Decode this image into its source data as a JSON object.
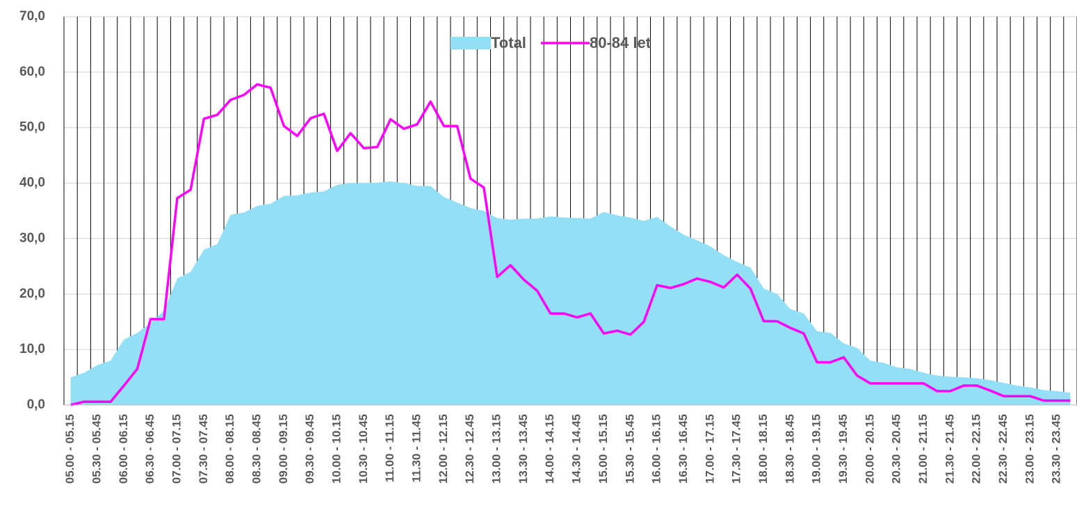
{
  "chart_data": {
    "type": "area_line",
    "categories": [
      "05.00 - 05.15",
      null,
      "05.30 - 05.45",
      null,
      "06.00 - 06.15",
      null,
      "06.30 - 06.45",
      null,
      "07.00 - 07.15",
      null,
      "07.30 - 07.45",
      null,
      "08.00 - 08.15",
      null,
      "08.30 - 08.45",
      null,
      "09.00 - 09.15",
      null,
      "09.30 - 09.45",
      null,
      "10.00 - 10.15",
      null,
      "10.30 - 10.45",
      null,
      "11.00 - 11.15",
      null,
      "11.30 - 11.45",
      null,
      "12.00 - 12.15",
      null,
      "12.30 - 12.45",
      null,
      "13.00 - 13.15",
      null,
      "13.30 - 13.45",
      null,
      "14.00 - 14.15",
      null,
      "14.30 - 14.45",
      null,
      "15.00 - 15.15",
      null,
      "15.30 - 15.45",
      null,
      "16.00 - 16.15",
      null,
      "16.30 - 16.45",
      null,
      "17.00 - 17.15",
      null,
      "17.30 - 17.45",
      null,
      "18.00 - 18.15",
      null,
      "18.30 - 18.45",
      null,
      "19.00 - 19.15",
      null,
      "19.30 - 19.45",
      null,
      "20.00 - 20.15",
      null,
      "20.30 - 20.45",
      null,
      "21.00 - 21.15",
      null,
      "21.30 - 21.45",
      null,
      "22.00 - 22.15",
      null,
      "22.30 - 22.45",
      null,
      "23.00 - 23.15",
      null,
      "23.30 - 23.45",
      null
    ],
    "series": [
      {
        "name": "Total",
        "kind": "area",
        "color": "#92dff6",
        "values": [
          5.0,
          5.8,
          7.2,
          8.0,
          11.8,
          13.0,
          14.8,
          17.0,
          22.8,
          24.0,
          28.0,
          29.0,
          34.3,
          34.7,
          35.9,
          36.3,
          37.7,
          37.8,
          38.3,
          38.5,
          39.7,
          40.0,
          40.0,
          40.1,
          40.3,
          40.0,
          39.5,
          39.5,
          37.5,
          36.5,
          35.5,
          35.0,
          33.7,
          33.4,
          33.6,
          33.6,
          34.0,
          33.8,
          33.7,
          33.6,
          34.8,
          34.2,
          33.8,
          33.2,
          33.9,
          32.2,
          30.7,
          29.7,
          28.6,
          27.0,
          25.8,
          24.8,
          21.0,
          20.0,
          17.3,
          16.5,
          13.3,
          13.0,
          11.1,
          10.3,
          8.0,
          7.6,
          6.8,
          6.5,
          5.8,
          5.3,
          5.1,
          5.0,
          4.8,
          4.5,
          4.0,
          3.5,
          3.2,
          2.7,
          2.5,
          2.2
        ]
      },
      {
        "name": "80-84 let",
        "kind": "line",
        "color": "#ff00ff",
        "values": [
          0.0,
          0.6,
          0.6,
          0.6,
          3.5,
          6.5,
          15.5,
          15.5,
          37.3,
          38.8,
          51.6,
          52.3,
          55.0,
          55.9,
          57.8,
          57.2,
          50.3,
          48.5,
          51.7,
          52.5,
          45.8,
          49.0,
          46.3,
          46.5,
          51.5,
          49.8,
          50.6,
          54.7,
          50.3,
          50.3,
          40.8,
          39.2,
          23.1,
          25.2,
          22.6,
          20.6,
          16.5,
          16.5,
          15.8,
          16.5,
          12.9,
          13.4,
          12.7,
          15.0,
          21.6,
          21.1,
          21.8,
          22.8,
          22.2,
          21.2,
          23.5,
          21.0,
          15.1,
          15.1,
          13.9,
          12.9,
          7.7,
          7.7,
          8.6,
          5.3,
          3.9,
          3.9,
          3.9,
          3.9,
          3.9,
          2.5,
          2.5,
          3.5,
          3.5,
          2.6,
          1.6,
          1.6,
          1.6,
          0.8,
          0.8,
          0.8
        ]
      }
    ],
    "ylim": [
      0,
      70
    ],
    "yticks": [
      {
        "value": 0,
        "label": "0,0"
      },
      {
        "value": 10,
        "label": "10,0"
      },
      {
        "value": 20,
        "label": "20,0"
      },
      {
        "value": 30,
        "label": "30,0"
      },
      {
        "value": 40,
        "label": "40,0"
      },
      {
        "value": 50,
        "label": "50,0"
      },
      {
        "value": 60,
        "label": "60,0"
      },
      {
        "value": 70,
        "label": "70,0"
      }
    ],
    "grid": true,
    "legend": "top"
  }
}
